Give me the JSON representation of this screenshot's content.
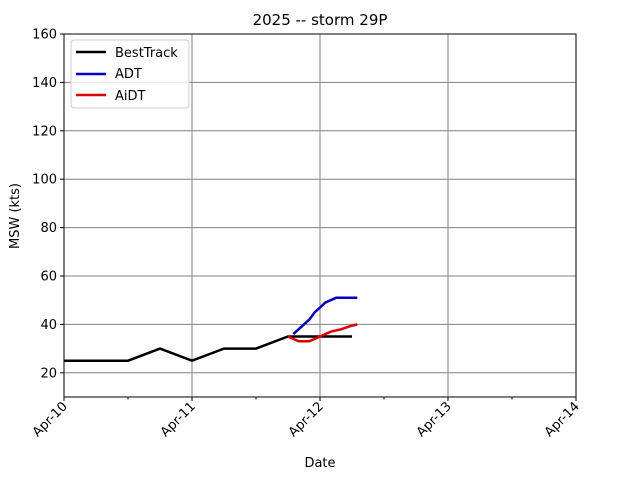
{
  "chart_data": {
    "type": "line",
    "title": "2025 -- storm 29P",
    "xlabel": "Date",
    "ylabel": "MSW (kts)",
    "xlim": [
      "2025-04-10 00:00",
      "2025-04-14 00:00"
    ],
    "ylim": [
      10,
      160
    ],
    "x_ticks": [
      {
        "x": "2025-04-10 00:00",
        "label": "Apr-10"
      },
      {
        "x": "2025-04-11 00:00",
        "label": "Apr-11"
      },
      {
        "x": "2025-04-12 00:00",
        "label": "Apr-12"
      },
      {
        "x": "2025-04-13 00:00",
        "label": "Apr-13"
      },
      {
        "x": "2025-04-14 00:00",
        "label": "Apr-14"
      }
    ],
    "x_minor_ticks": [
      "2025-04-10 12:00",
      "2025-04-11 12:00",
      "2025-04-12 12:00",
      "2025-04-13 12:00"
    ],
    "y_ticks": [
      20,
      40,
      60,
      80,
      100,
      120,
      140,
      160
    ],
    "grid": true,
    "legend_position": "top-left",
    "series": [
      {
        "name": "BestTrack",
        "color": "#000000",
        "points": [
          {
            "x": "2025-04-10 00:00",
            "y": 25
          },
          {
            "x": "2025-04-10 06:00",
            "y": 25
          },
          {
            "x": "2025-04-10 12:00",
            "y": 25
          },
          {
            "x": "2025-04-10 18:00",
            "y": 30
          },
          {
            "x": "2025-04-11 00:00",
            "y": 25
          },
          {
            "x": "2025-04-11 06:00",
            "y": 30
          },
          {
            "x": "2025-04-11 12:00",
            "y": 30
          },
          {
            "x": "2025-04-11 18:00",
            "y": 35
          },
          {
            "x": "2025-04-12 00:00",
            "y": 35
          },
          {
            "x": "2025-04-12 06:00",
            "y": 35
          }
        ]
      },
      {
        "name": "ADT",
        "color": "#0000cc",
        "points": [
          {
            "x": "2025-04-11 19:00",
            "y": 36
          },
          {
            "x": "2025-04-11 20:00",
            "y": 38
          },
          {
            "x": "2025-04-11 21:00",
            "y": 40
          },
          {
            "x": "2025-04-11 22:00",
            "y": 42
          },
          {
            "x": "2025-04-11 23:00",
            "y": 45
          },
          {
            "x": "2025-04-12 00:00",
            "y": 47
          },
          {
            "x": "2025-04-12 01:00",
            "y": 49
          },
          {
            "x": "2025-04-12 03:00",
            "y": 51
          },
          {
            "x": "2025-04-12 07:00",
            "y": 51
          }
        ]
      },
      {
        "name": "AiDT",
        "color": "#dd0000",
        "points": [
          {
            "x": "2025-04-11 18:00",
            "y": 35
          },
          {
            "x": "2025-04-11 20:00",
            "y": 33
          },
          {
            "x": "2025-04-11 22:00",
            "y": 33
          },
          {
            "x": "2025-04-12 00:00",
            "y": 35
          },
          {
            "x": "2025-04-12 02:00",
            "y": 37
          },
          {
            "x": "2025-04-12 04:00",
            "y": 38
          },
          {
            "x": "2025-04-12 06:00",
            "y": 39.5
          },
          {
            "x": "2025-04-12 07:00",
            "y": 40
          }
        ]
      }
    ]
  }
}
